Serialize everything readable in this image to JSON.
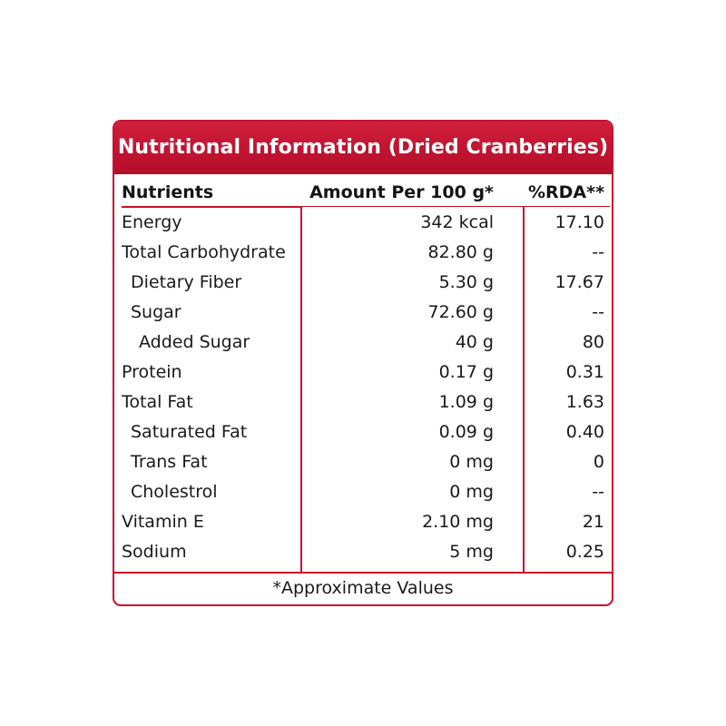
{
  "title": "Nutritional Information (Dried Cranberries)",
  "headers": {
    "nutrients": "Nutrients",
    "amount": "Amount Per 100 g*",
    "rda": "%RDA**"
  },
  "rows": [
    {
      "name": "Energy",
      "amount": "342 kcal",
      "rda": "17.10",
      "indent": 0
    },
    {
      "name": "Total Carbohydrate",
      "amount": "82.80 g",
      "rda": "--",
      "indent": 0
    },
    {
      "name": "Dietary Fiber",
      "amount": "5.30 g",
      "rda": "17.67",
      "indent": 1
    },
    {
      "name": "Sugar",
      "amount": "72.60 g",
      "rda": "--",
      "indent": 1
    },
    {
      "name": "Added Sugar",
      "amount": "40 g",
      "rda": "80",
      "indent": 2
    },
    {
      "name": "Protein",
      "amount": "0.17 g",
      "rda": "0.31",
      "indent": 0
    },
    {
      "name": "Total Fat",
      "amount": "1.09 g",
      "rda": "1.63",
      "indent": 0
    },
    {
      "name": "Saturated Fat",
      "amount": "0.09 g",
      "rda": "0.40",
      "indent": 1
    },
    {
      "name": "Trans Fat",
      "amount": "0 mg",
      "rda": "0",
      "indent": 1
    },
    {
      "name": "Cholestrol",
      "amount": "0 mg",
      "rda": "--",
      "indent": 1
    },
    {
      "name": "Vitamin E",
      "amount": "2.10 mg",
      "rda": "21",
      "indent": 0
    },
    {
      "name": "Sodium",
      "amount": "5 mg",
      "rda": "0.25",
      "indent": 0
    }
  ],
  "footnote": "*Approximate Values",
  "colors": {
    "accent": "#c8102e",
    "text": "#1a1a1a",
    "banner_text": "#ffffff"
  }
}
